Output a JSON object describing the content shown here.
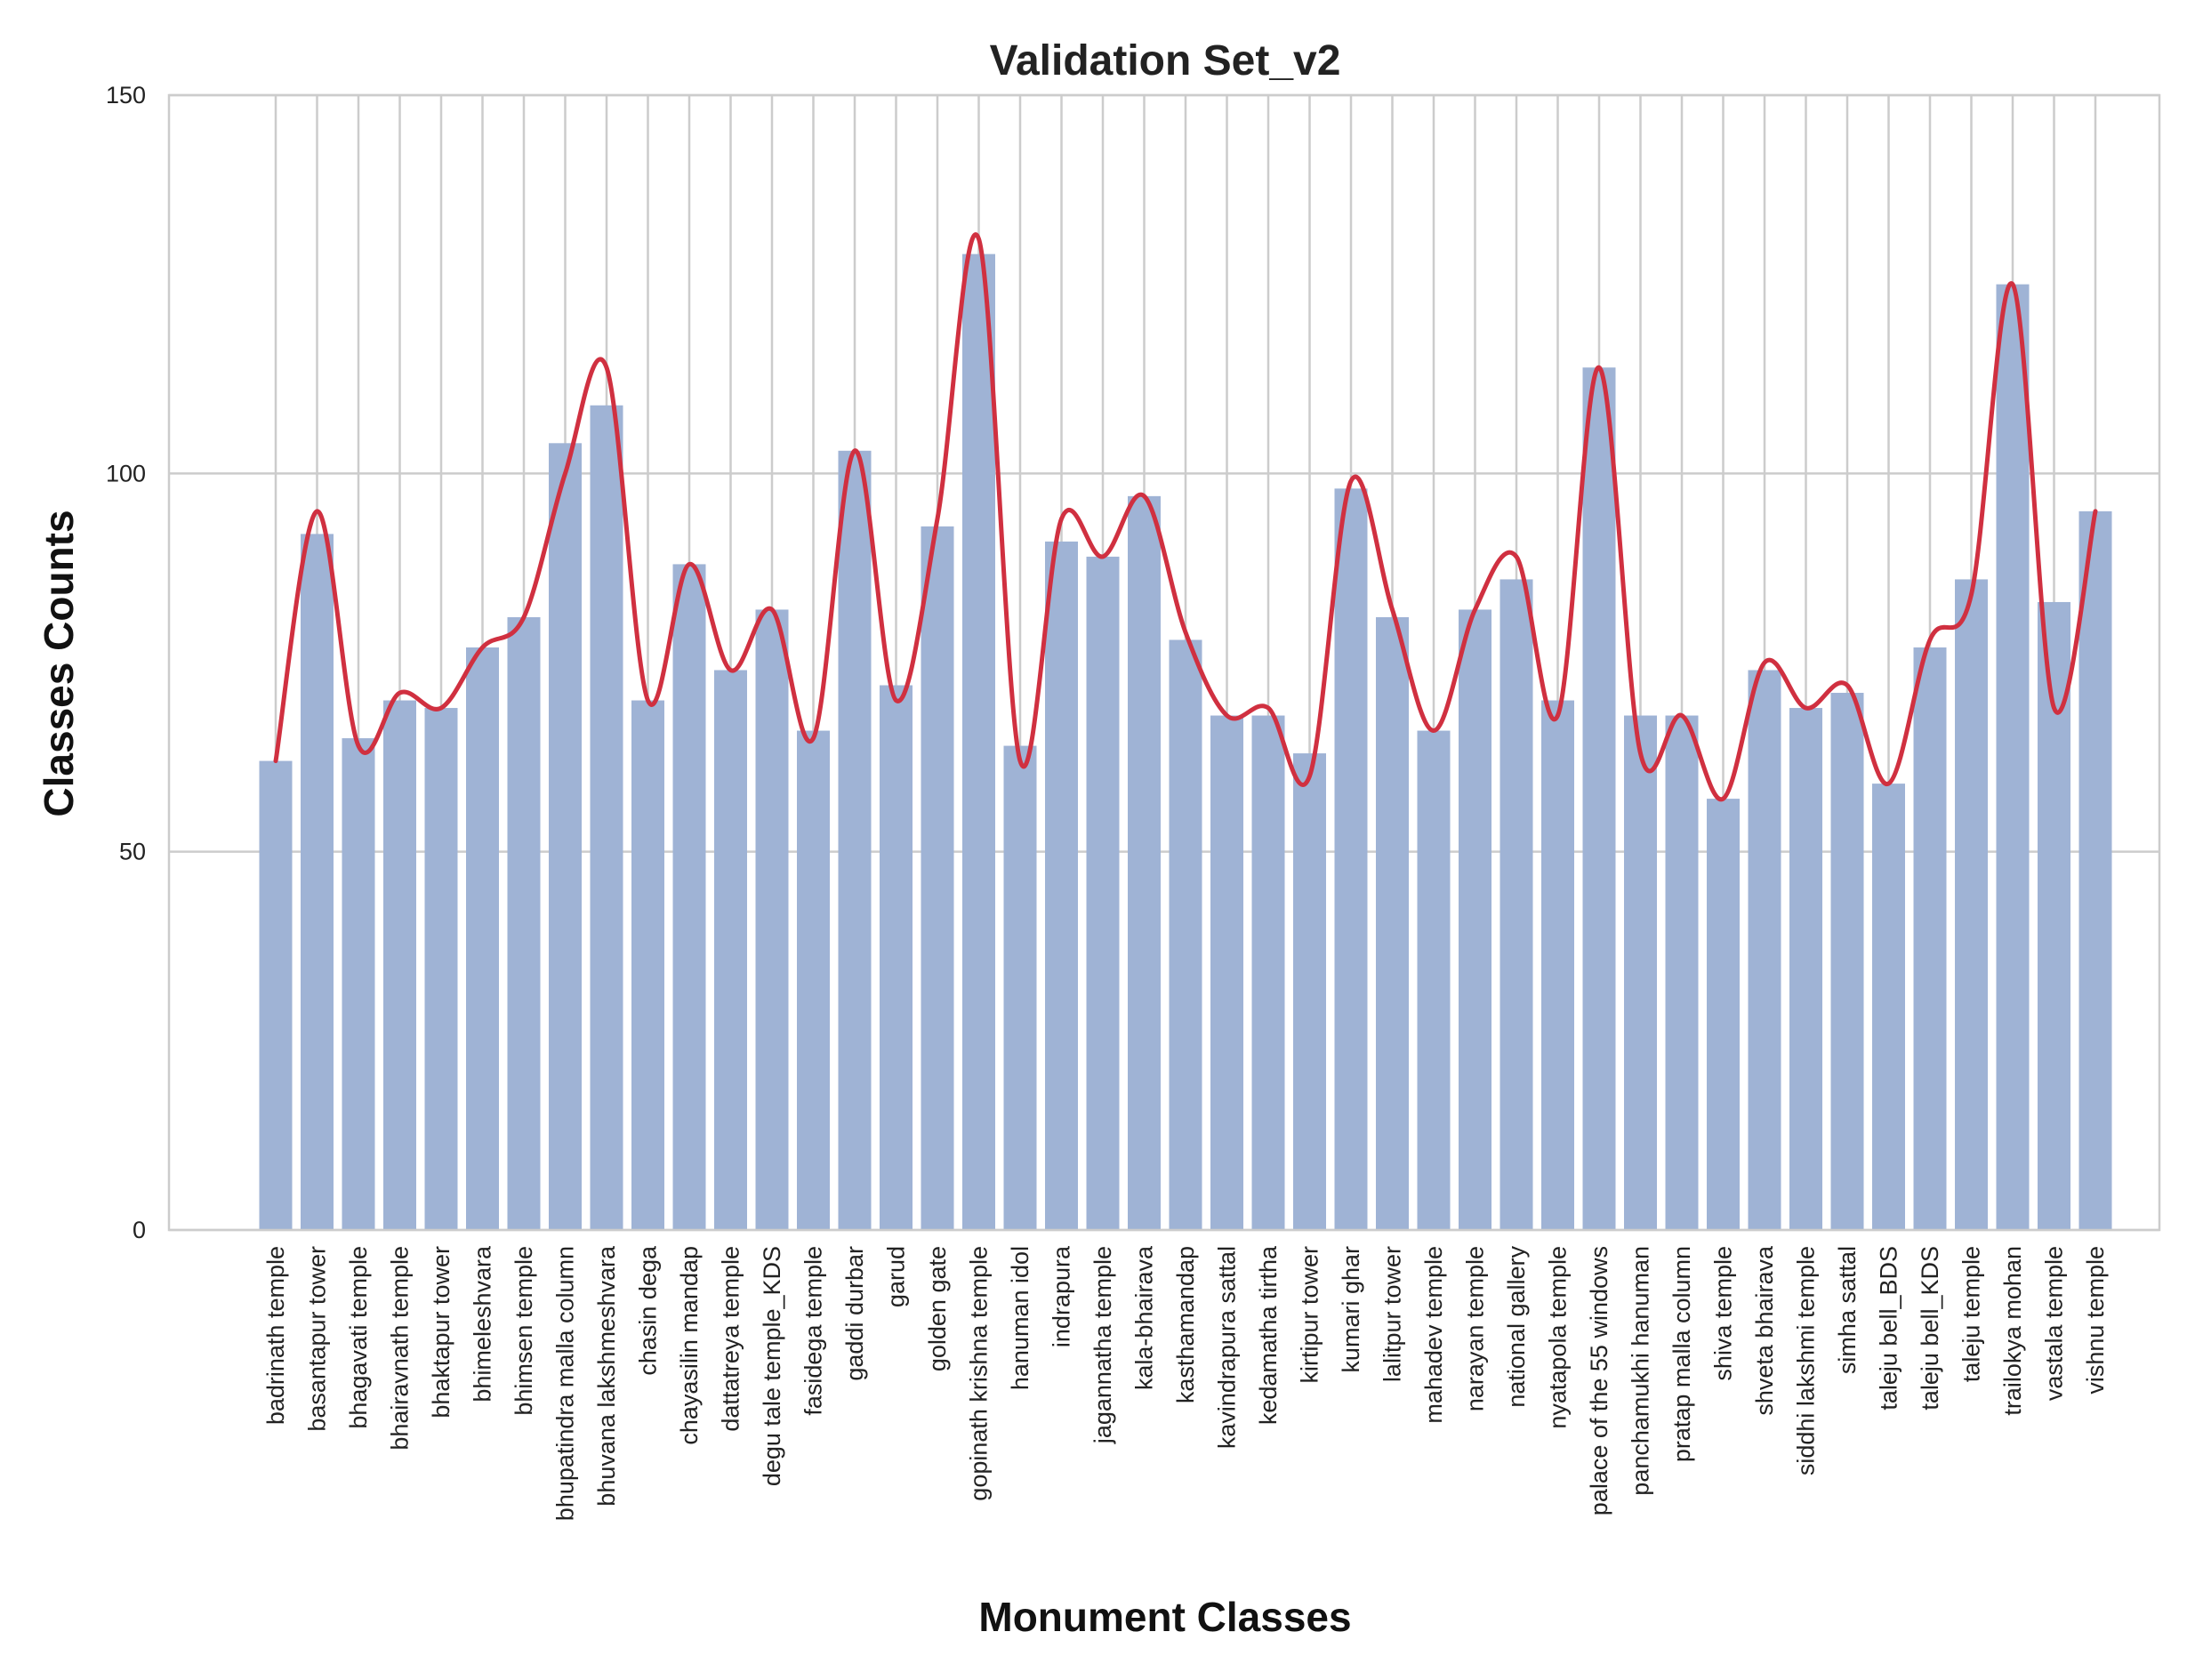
{
  "chart_data": {
    "type": "bar",
    "title": "Validation Set_v2",
    "xlabel": "Monument Classes",
    "ylabel": "Classes Counts",
    "ylim": [
      0,
      150
    ],
    "yticks": [
      0,
      50,
      100,
      150
    ],
    "grid": true,
    "bar_color": "#9fb3d5",
    "line_color": "#d03040",
    "categories": [
      "badrinath temple",
      "basantapur tower",
      "bhagavati temple",
      "bhairavnath temple",
      "bhaktapur tower",
      "bhimeleshvara",
      "bhimsen temple",
      "bhupatindra malla column",
      "bhuvana lakshmeshvara",
      "chasin dega",
      "chayasilin mandap",
      "dattatreya temple",
      "degu tale temple_KDS",
      "fasidega temple",
      "gaddi durbar",
      "garud",
      "golden gate",
      "gopinath krishna temple",
      "hanuman idol",
      "indrapura",
      "jagannatha temple",
      "kala-bhairava",
      "kasthamandap",
      "kavindrapura sattal",
      "kedamatha tirtha",
      "kirtipur tower",
      "kumari ghar",
      "lalitpur tower",
      "mahadev temple",
      "narayan temple",
      "national gallery",
      "nyatapola temple",
      "palace of the 55 windows",
      "panchamukhi hanuman",
      "pratap malla column",
      "shiva temple",
      "shveta bhairava",
      "siddhi lakshmi temple",
      "simha sattal",
      "taleju bell_BDS",
      "taleju bell_KDS",
      "taleju temple",
      "trailokya mohan",
      "vastala temple",
      "vishnu temple"
    ],
    "values": [
      62,
      92,
      65,
      70,
      69,
      77,
      81,
      104,
      109,
      70,
      88,
      74,
      82,
      66,
      103,
      72,
      93,
      129,
      64,
      91,
      89,
      97,
      78,
      68,
      68,
      63,
      98,
      81,
      66,
      82,
      86,
      70,
      114,
      68,
      68,
      57,
      74,
      69,
      71,
      59,
      77,
      86,
      125,
      83,
      95
    ],
    "density_curve": [
      62,
      95,
      64,
      71,
      69,
      77,
      81,
      100,
      114,
      70,
      88,
      74,
      82,
      65,
      103,
      70,
      94,
      131,
      62,
      94,
      89,
      97,
      79,
      68,
      69,
      60,
      99,
      82,
      66,
      82,
      89,
      68,
      114,
      63,
      68,
      57,
      75,
      69,
      72,
      59,
      78,
      84,
      125,
      69,
      95
    ]
  }
}
